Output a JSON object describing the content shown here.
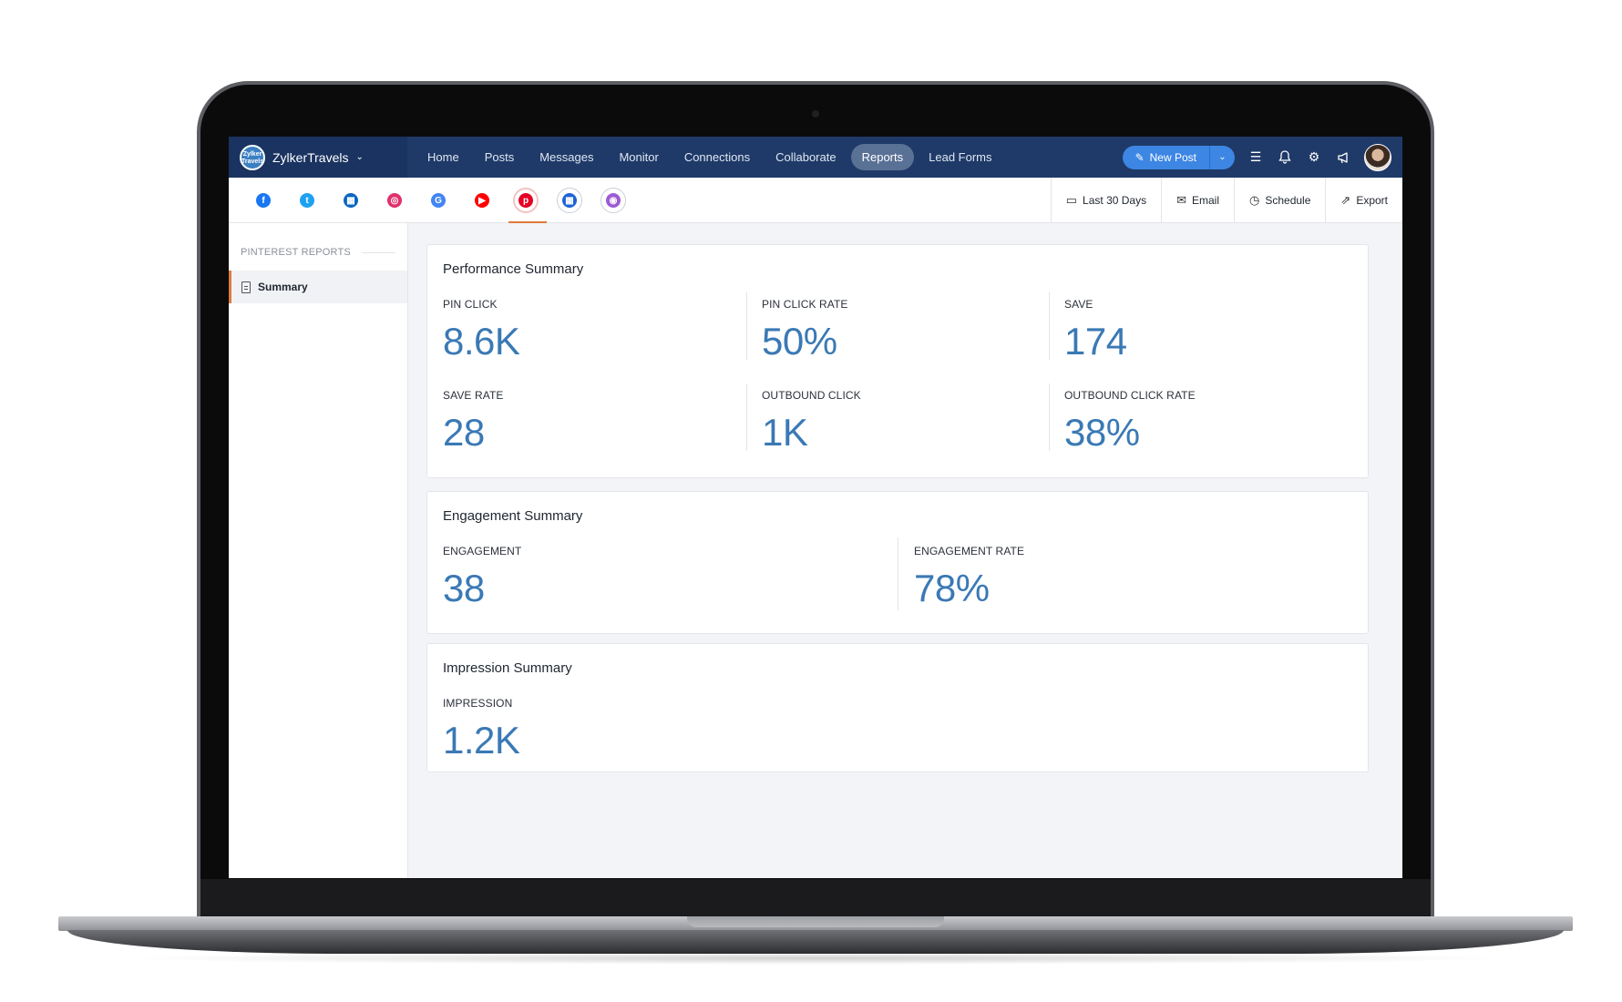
{
  "brand": {
    "name": "ZylkerTravels",
    "logo_text": "Zylker Travels"
  },
  "nav": {
    "items": [
      {
        "label": "Home"
      },
      {
        "label": "Posts"
      },
      {
        "label": "Messages"
      },
      {
        "label": "Monitor"
      },
      {
        "label": "Connections"
      },
      {
        "label": "Collaborate"
      },
      {
        "label": "Reports",
        "active": true
      },
      {
        "label": "Lead Forms"
      }
    ],
    "new_post_label": "New Post"
  },
  "channels": [
    {
      "icon": "facebook-icon",
      "color": "#1877f2",
      "glyph": "f"
    },
    {
      "icon": "twitter-icon",
      "color": "#1da1f2",
      "glyph": "t"
    },
    {
      "icon": "linkedin-page-icon",
      "color": "#0a66c2",
      "glyph": "▦"
    },
    {
      "icon": "instagram-icon",
      "color": "#e1306c",
      "glyph": "◎"
    },
    {
      "icon": "google-business-icon",
      "color": "#4285f4",
      "glyph": "G"
    },
    {
      "icon": "youtube-icon",
      "color": "#ff0000",
      "glyph": "▶"
    },
    {
      "icon": "pinterest-icon",
      "color": "#e60023",
      "glyph": "p",
      "active": true
    },
    {
      "icon": "microsoft-icon",
      "color": "#1e63d6",
      "glyph": "▦"
    },
    {
      "icon": "tiktok-icon",
      "color": "#9c5bd6",
      "glyph": "◉"
    }
  ],
  "actions": {
    "date_range": "Last 30 Days",
    "email": "Email",
    "schedule": "Schedule",
    "export": "Export"
  },
  "sidebar": {
    "heading": "PINTEREST REPORTS",
    "items": [
      {
        "label": "Summary",
        "active": true
      }
    ]
  },
  "performance": {
    "title": "Performance Summary",
    "metrics": [
      {
        "label": "PIN CLICK",
        "value": "8.6K"
      },
      {
        "label": "PIN CLICK RATE",
        "value": "50%"
      },
      {
        "label": "SAVE",
        "value": "174"
      },
      {
        "label": "SAVE RATE",
        "value": "28"
      },
      {
        "label": "OUTBOUND CLICK",
        "value": "1K"
      },
      {
        "label": "OUTBOUND CLICK RATE",
        "value": "38%"
      }
    ]
  },
  "engagement": {
    "title": "Engagement Summary",
    "metrics": [
      {
        "label": "ENGAGEMENT",
        "value": "38"
      },
      {
        "label": "ENGAGEMENT RATE",
        "value": "78%"
      }
    ]
  },
  "impression": {
    "title": "Impression Summary",
    "metrics": [
      {
        "label": "IMPRESSION",
        "value": "1.2K"
      }
    ]
  }
}
